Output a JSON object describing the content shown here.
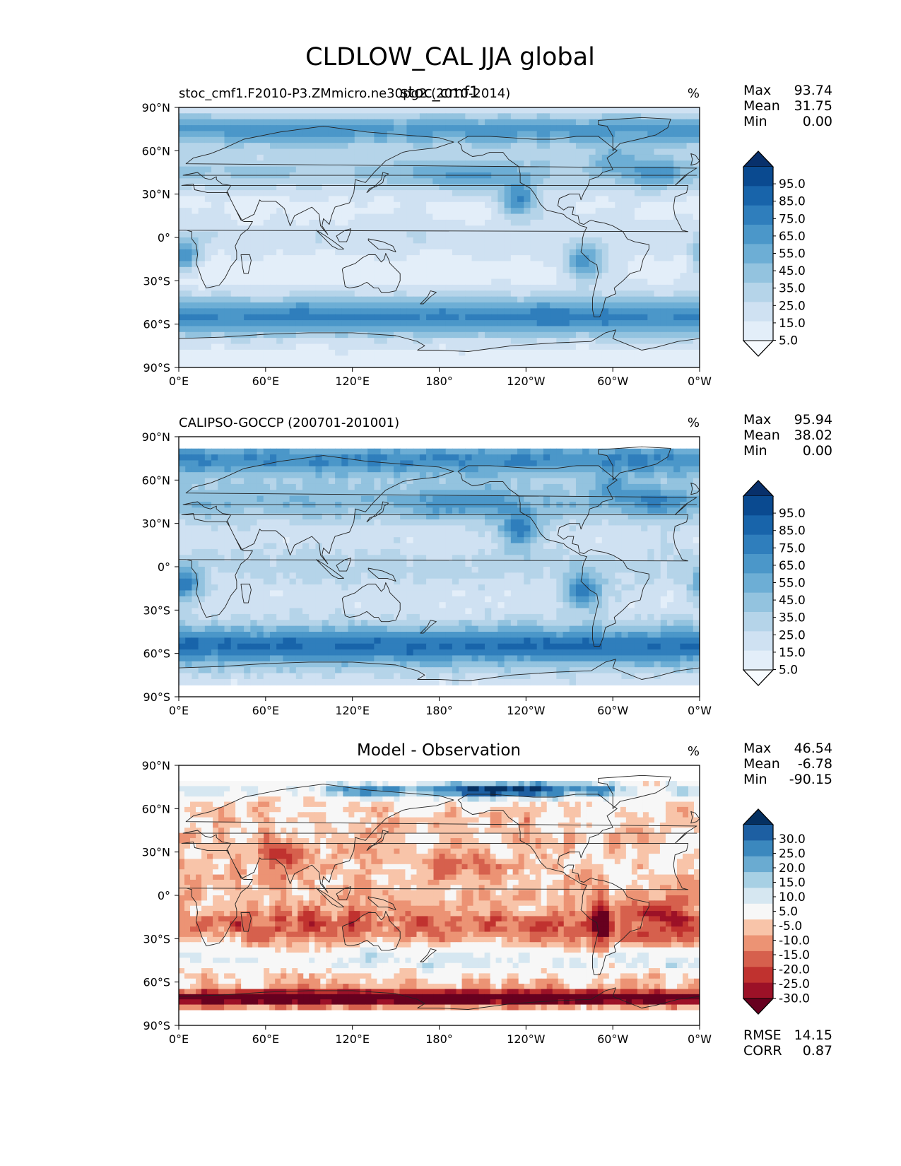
{
  "figure_title": "CLDLOW_CAL JJA global",
  "overlap_title": "stoc_cmf1",
  "colors": {
    "blues": [
      "#f7fbff",
      "#e3eef9",
      "#cfe1f2",
      "#b5d4e9",
      "#93c3df",
      "#6daed5",
      "#4b97c9",
      "#2f7ebc",
      "#1864aa",
      "#0a4a90",
      "#08306b"
    ],
    "diff": [
      "#67001f",
      "#9c1127",
      "#c0322f",
      "#d6604d",
      "#ec9374",
      "#f8c4a9",
      "#fbe3d6",
      "#f7f7f7",
      "#d6e7f1",
      "#a7d0e4",
      "#6aabd1",
      "#3b88be",
      "#1d5fa2",
      "#053061"
    ],
    "coast": "#222222"
  },
  "chart_data": [
    {
      "type": "heatmap",
      "id": "panel1",
      "title_left": "stoc_cmf1.F2010-P3.ZMmicro.ne30pg2 (2010-2014)",
      "title_center": "",
      "units": "%",
      "ylabel_ticks": [
        "90°N",
        "60°N",
        "30°N",
        "0°",
        "30°S",
        "60°S",
        "90°S"
      ],
      "xlabel_ticks": [
        "0°E",
        "60°E",
        "120°E",
        "180°",
        "120°W",
        "60°W",
        "0°W"
      ],
      "stats": {
        "labels": [
          "Max",
          "Mean",
          "Min"
        ],
        "values": [
          "93.74",
          "31.75",
          "0.00"
        ]
      },
      "colorbar": {
        "labels": [
          "95.0",
          "85.0",
          "75.0",
          "65.0",
          "55.0",
          "45.0",
          "35.0",
          "25.0",
          "15.0",
          "5.0"
        ]
      },
      "lat_range": [
        -90,
        90
      ],
      "lon_range": [
        0,
        360
      ]
    },
    {
      "type": "heatmap",
      "id": "panel2",
      "title_left": "CALIPSO-GOCCP (200701-201001)",
      "title_center": "",
      "units": "%",
      "ylabel_ticks": [
        "90°N",
        "60°N",
        "30°N",
        "0°",
        "30°S",
        "60°S",
        "90°S"
      ],
      "xlabel_ticks": [
        "0°E",
        "60°E",
        "120°E",
        "180°",
        "120°W",
        "60°W",
        "0°W"
      ],
      "stats": {
        "labels": [
          "Max",
          "Mean",
          "Min"
        ],
        "values": [
          "95.94",
          "38.02",
          "0.00"
        ]
      },
      "colorbar": {
        "labels": [
          "95.0",
          "85.0",
          "75.0",
          "65.0",
          "55.0",
          "45.0",
          "35.0",
          "25.0",
          "15.0",
          "5.0"
        ]
      },
      "lat_range": [
        -90,
        90
      ],
      "lon_range": [
        0,
        360
      ]
    },
    {
      "type": "heatmap",
      "id": "panel3",
      "title_left": "",
      "title_center": "Model - Observation",
      "units": "%",
      "ylabel_ticks": [
        "90°N",
        "60°N",
        "30°N",
        "0°",
        "30°S",
        "60°S",
        "90°S"
      ],
      "xlabel_ticks": [
        "0°E",
        "60°E",
        "120°E",
        "180°",
        "120°W",
        "60°W",
        "0°W"
      ],
      "stats": {
        "labels": [
          "Max",
          "Mean",
          "Min"
        ],
        "values": [
          "46.54",
          "-6.78",
          "-90.15"
        ]
      },
      "colorbar": {
        "labels": [
          "30.0",
          "25.0",
          "20.0",
          "15.0",
          "10.0",
          "5.0",
          "-5.0",
          "-10.0",
          "-15.0",
          "-20.0",
          "-25.0",
          "-30.0"
        ]
      },
      "metrics": {
        "labels": [
          "RMSE",
          "CORR"
        ],
        "values": [
          "14.15",
          "0.87"
        ]
      },
      "lat_range": [
        -90,
        90
      ],
      "lon_range": [
        0,
        360
      ]
    }
  ]
}
